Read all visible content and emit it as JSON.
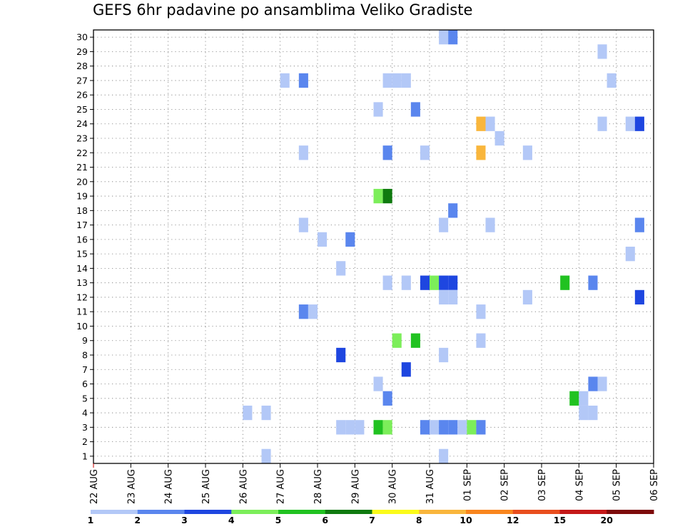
{
  "chart_data": {
    "type": "heatmap",
    "title": "GEFS 6hr padavine po ansamblima Veliko Gradiste",
    "xlabel": "",
    "ylabel": "",
    "x_tick_labels": [
      "22 AUG",
      "23 AUG",
      "24 AUG",
      "25 AUG",
      "26 AUG",
      "27 AUG",
      "28 AUG",
      "29 AUG",
      "30 AUG",
      "31 AUG",
      "01 SEP",
      "02 SEP",
      "03 SEP",
      "04 SEP",
      "05 SEP",
      "06 SEP"
    ],
    "y_tick_labels": [
      "1",
      "2",
      "3",
      "4",
      "5",
      "6",
      "7",
      "8",
      "9",
      "10",
      "11",
      "12",
      "13",
      "14",
      "15",
      "16",
      "17",
      "18",
      "19",
      "20",
      "21",
      "22",
      "23",
      "24",
      "25",
      "26",
      "27",
      "28",
      "29",
      "30"
    ],
    "step_hours": 6,
    "xlim_days": [
      0,
      15
    ],
    "ylim": [
      0.5,
      30.5
    ],
    "grid": true,
    "color_scale": {
      "labels": [
        "1",
        "2",
        "3",
        "4",
        "5",
        "6",
        "7",
        "8",
        "10",
        "12",
        "15",
        "20"
      ],
      "colors": [
        "#b3c8f7",
        "#5a86ee",
        "#1e46e0",
        "#7cee5a",
        "#21c221",
        "#0f7a0f",
        "#fbfb1a",
        "#f9b63c",
        "#f9861e",
        "#e94e1e",
        "#c41818",
        "#7d0a0a"
      ]
    },
    "cells": [
      {
        "x": "2023-08-31 06",
        "y": 30,
        "c": 0
      },
      {
        "x": "2023-08-31 12",
        "y": 30,
        "c": 1
      },
      {
        "x": "2023-09-04 12",
        "y": 29,
        "c": 0
      },
      {
        "x": "2023-08-27 00",
        "y": 27,
        "c": 0
      },
      {
        "x": "2023-08-27 12",
        "y": 27,
        "c": 1
      },
      {
        "x": "2023-08-29 18",
        "y": 27,
        "c": 0
      },
      {
        "x": "2023-08-30 00",
        "y": 27,
        "c": 0
      },
      {
        "x": "2023-08-30 06",
        "y": 27,
        "c": 0
      },
      {
        "x": "2023-09-04 18",
        "y": 27,
        "c": 0
      },
      {
        "x": "2023-08-29 12",
        "y": 25,
        "c": 0
      },
      {
        "x": "2023-08-30 12",
        "y": 25,
        "c": 1
      },
      {
        "x": "2023-09-01 06",
        "y": 24,
        "c": 7
      },
      {
        "x": "2023-09-01 12",
        "y": 24,
        "c": 0
      },
      {
        "x": "2023-09-04 12",
        "y": 24,
        "c": 0
      },
      {
        "x": "2023-09-05 06",
        "y": 24,
        "c": 0
      },
      {
        "x": "2023-09-05 12",
        "y": 24,
        "c": 2
      },
      {
        "x": "2023-09-01 18",
        "y": 23,
        "c": 0
      },
      {
        "x": "2023-08-27 12",
        "y": 22,
        "c": 0
      },
      {
        "x": "2023-08-29 18",
        "y": 22,
        "c": 1
      },
      {
        "x": "2023-08-30 18",
        "y": 22,
        "c": 0
      },
      {
        "x": "2023-09-01 06",
        "y": 22,
        "c": 7
      },
      {
        "x": "2023-09-02 12",
        "y": 22,
        "c": 0
      },
      {
        "x": "2023-08-29 12",
        "y": 19,
        "c": 3
      },
      {
        "x": "2023-08-29 18",
        "y": 19,
        "c": 5
      },
      {
        "x": "2023-08-31 12",
        "y": 18,
        "c": 1
      },
      {
        "x": "2023-08-27 12",
        "y": 17,
        "c": 0
      },
      {
        "x": "2023-08-31 06",
        "y": 17,
        "c": 0
      },
      {
        "x": "2023-09-01 12",
        "y": 17,
        "c": 0
      },
      {
        "x": "2023-09-05 12",
        "y": 17,
        "c": 1
      },
      {
        "x": "2023-08-28 00",
        "y": 16,
        "c": 0
      },
      {
        "x": "2023-08-28 18",
        "y": 16,
        "c": 1
      },
      {
        "x": "2023-09-05 06",
        "y": 15,
        "c": 0
      },
      {
        "x": "2023-08-28 12",
        "y": 14,
        "c": 0
      },
      {
        "x": "2023-08-29 18",
        "y": 13,
        "c": 0
      },
      {
        "x": "2023-08-30 06",
        "y": 13,
        "c": 0
      },
      {
        "x": "2023-08-30 18",
        "y": 13,
        "c": 2
      },
      {
        "x": "2023-08-31 00",
        "y": 13,
        "c": 3
      },
      {
        "x": "2023-08-31 06",
        "y": 13,
        "c": 2
      },
      {
        "x": "2023-08-31 12",
        "y": 13,
        "c": 2
      },
      {
        "x": "2023-09-03 12",
        "y": 13,
        "c": 4
      },
      {
        "x": "2023-09-04 06",
        "y": 13,
        "c": 1
      },
      {
        "x": "2023-08-31 06",
        "y": 12,
        "c": 0
      },
      {
        "x": "2023-08-31 12",
        "y": 12,
        "c": 0
      },
      {
        "x": "2023-09-02 12",
        "y": 12,
        "c": 0
      },
      {
        "x": "2023-09-05 12",
        "y": 12,
        "c": 2
      },
      {
        "x": "2023-08-27 12",
        "y": 11,
        "c": 1
      },
      {
        "x": "2023-08-27 18",
        "y": 11,
        "c": 0
      },
      {
        "x": "2023-09-01 06",
        "y": 11,
        "c": 0
      },
      {
        "x": "2023-08-30 00",
        "y": 9,
        "c": 3
      },
      {
        "x": "2023-08-30 12",
        "y": 9,
        "c": 4
      },
      {
        "x": "2023-09-01 06",
        "y": 9,
        "c": 0
      },
      {
        "x": "2023-08-28 12",
        "y": 8,
        "c": 2
      },
      {
        "x": "2023-08-31 06",
        "y": 8,
        "c": 0
      },
      {
        "x": "2023-08-30 06",
        "y": 7,
        "c": 2
      },
      {
        "x": "2023-08-29 12",
        "y": 6,
        "c": 0
      },
      {
        "x": "2023-09-04 06",
        "y": 6,
        "c": 1
      },
      {
        "x": "2023-09-04 12",
        "y": 6,
        "c": 0
      },
      {
        "x": "2023-08-29 18",
        "y": 5,
        "c": 1
      },
      {
        "x": "2023-09-03 18",
        "y": 5,
        "c": 4
      },
      {
        "x": "2023-09-04 00",
        "y": 5,
        "c": 0
      },
      {
        "x": "2023-08-26 00",
        "y": 4,
        "c": 0
      },
      {
        "x": "2023-08-26 12",
        "y": 4,
        "c": 0
      },
      {
        "x": "2023-09-04 00",
        "y": 4,
        "c": 0
      },
      {
        "x": "2023-09-04 06",
        "y": 4,
        "c": 0
      },
      {
        "x": "2023-08-28 12",
        "y": 3,
        "c": 0
      },
      {
        "x": "2023-08-28 18",
        "y": 3,
        "c": 0
      },
      {
        "x": "2023-08-29 00",
        "y": 3,
        "c": 0
      },
      {
        "x": "2023-08-29 12",
        "y": 3,
        "c": 4
      },
      {
        "x": "2023-08-29 18",
        "y": 3,
        "c": 3
      },
      {
        "x": "2023-08-30 18",
        "y": 3,
        "c": 1
      },
      {
        "x": "2023-08-31 00",
        "y": 3,
        "c": 0
      },
      {
        "x": "2023-08-31 06",
        "y": 3,
        "c": 1
      },
      {
        "x": "2023-08-31 12",
        "y": 3,
        "c": 1
      },
      {
        "x": "2023-08-31 18",
        "y": 3,
        "c": 0
      },
      {
        "x": "2023-09-01 00",
        "y": 3,
        "c": 3
      },
      {
        "x": "2023-09-01 06",
        "y": 3,
        "c": 1
      },
      {
        "x": "2023-08-26 12",
        "y": 1,
        "c": 0
      },
      {
        "x": "2023-08-31 06",
        "y": 1,
        "c": 0
      }
    ]
  }
}
